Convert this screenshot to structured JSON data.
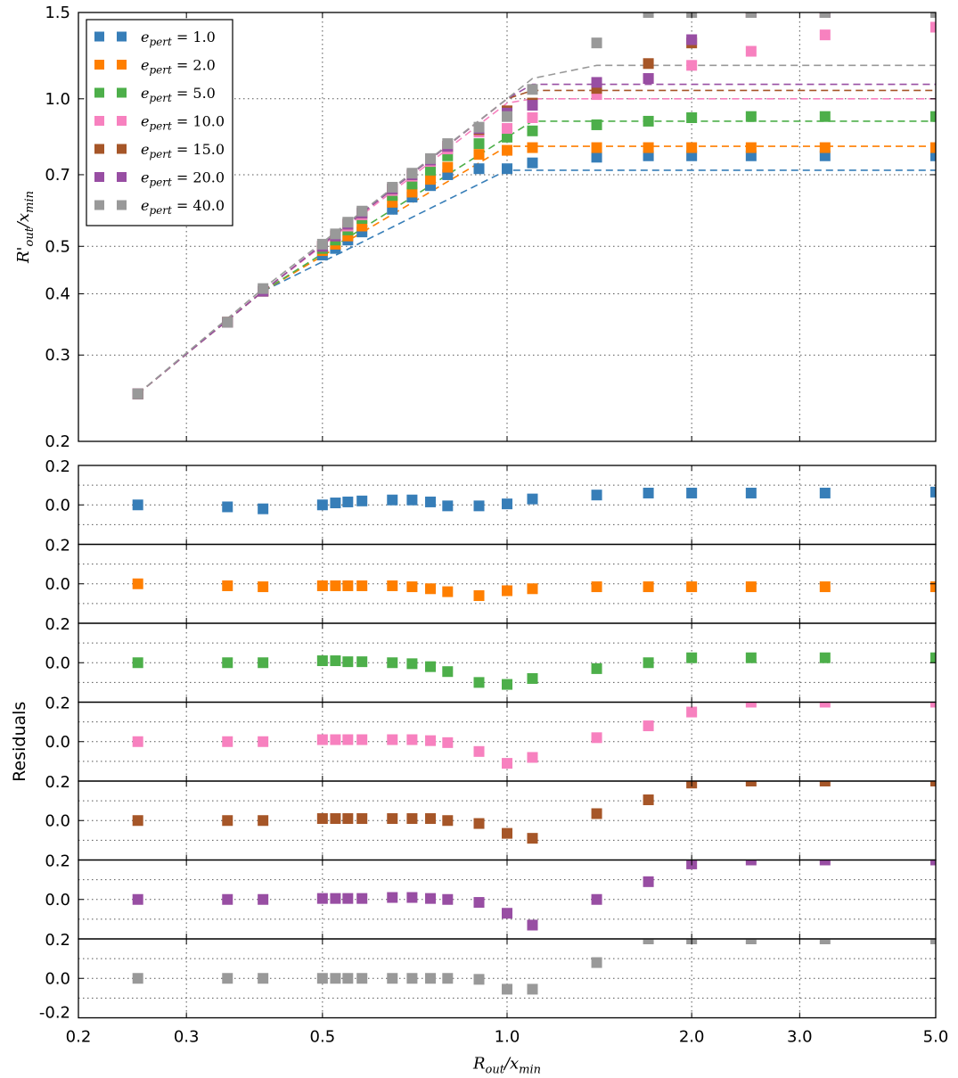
{
  "chart_data": {
    "type": "scatter",
    "x": [
      0.25,
      0.35,
      0.4,
      0.5,
      0.525,
      0.55,
      0.58,
      0.65,
      0.7,
      0.75,
      0.8,
      0.9,
      1.0,
      1.1,
      1.4,
      1.7,
      2.0,
      2.5,
      3.3,
      5.0
    ],
    "xlabel": "R_out/x_min",
    "x_tick_labels": [
      "0.2",
      "0.3",
      "0.5",
      "1.0",
      "2.0",
      "3.0",
      "5.0"
    ],
    "xlim": [
      0.2,
      5.0
    ],
    "xscale": "log",
    "main": {
      "ylabel": "R'_out/x_min",
      "ylim": [
        0.2,
        1.5
      ],
      "yscale": "log",
      "y_tick_labels": [
        "0.2",
        "0.3",
        "0.4",
        "0.5",
        "0.7",
        "1.0",
        "1.5"
      ],
      "grid": true
    },
    "residuals": {
      "ylabel": "Residuals",
      "ylim": [
        -0.2,
        0.2
      ],
      "y_tick_labels": [
        "0.2",
        "0.0",
        "-0.2"
      ]
    },
    "legend": {
      "position": "top-left"
    },
    "series": [
      {
        "name": "e_pert = 1.0",
        "color": "#377eb8",
        "y": [
          0.25,
          0.35,
          0.405,
          0.48,
          0.495,
          0.515,
          0.535,
          0.595,
          0.63,
          0.665,
          0.7,
          0.72,
          0.72,
          0.74,
          0.76,
          0.765,
          0.765,
          0.765,
          0.765,
          0.765
        ],
        "fit": [
          [
            0.25,
            0.25
          ],
          [
            0.4,
            0.405
          ],
          [
            1.0,
            0.715
          ],
          [
            5.0,
            0.715
          ]
        ],
        "residuals": [
          0.0,
          -0.01,
          -0.02,
          0.0,
          0.01,
          0.015,
          0.02,
          0.025,
          0.025,
          0.015,
          -0.005,
          -0.005,
          0.005,
          0.03,
          0.05,
          0.06,
          0.06,
          0.06,
          0.06,
          0.065
        ]
      },
      {
        "name": "e_pert = 2.0",
        "color": "#ff7f00",
        "y": [
          0.25,
          0.35,
          0.405,
          0.49,
          0.505,
          0.525,
          0.55,
          0.615,
          0.645,
          0.685,
          0.725,
          0.77,
          0.785,
          0.795,
          0.795,
          0.795,
          0.795,
          0.795,
          0.795,
          0.795
        ],
        "fit": [
          [
            0.25,
            0.25
          ],
          [
            0.4,
            0.405
          ],
          [
            1.0,
            0.8
          ],
          [
            5.0,
            0.8
          ]
        ],
        "residuals": [
          0.0,
          -0.01,
          -0.015,
          -0.01,
          -0.01,
          -0.01,
          -0.01,
          -0.01,
          -0.015,
          -0.025,
          -0.04,
          -0.06,
          -0.035,
          -0.025,
          -0.015,
          -0.015,
          -0.015,
          -0.015,
          -0.015,
          -0.015
        ]
      },
      {
        "name": "e_pert = 5.0",
        "color": "#4daf4a",
        "y": [
          0.25,
          0.35,
          0.405,
          0.495,
          0.515,
          0.54,
          0.57,
          0.635,
          0.67,
          0.715,
          0.765,
          0.81,
          0.835,
          0.86,
          0.885,
          0.9,
          0.915,
          0.92,
          0.92,
          0.92
        ],
        "fit": [
          [
            0.25,
            0.25
          ],
          [
            0.4,
            0.405
          ],
          [
            1.1,
            0.9
          ],
          [
            5.0,
            0.9
          ]
        ],
        "residuals": [
          0.0,
          0.0,
          0.0,
          0.01,
          0.01,
          0.005,
          0.005,
          0.0,
          -0.005,
          -0.02,
          -0.045,
          -0.1,
          -0.11,
          -0.08,
          -0.03,
          0.0,
          0.025,
          0.025,
          0.025,
          0.025
        ]
      },
      {
        "name": "e_pert = 10.0",
        "color": "#f781bf",
        "y": [
          0.25,
          0.35,
          0.405,
          0.5,
          0.525,
          0.55,
          0.58,
          0.65,
          0.695,
          0.745,
          0.79,
          0.855,
          0.87,
          0.915,
          1.02,
          1.1,
          1.17,
          1.25,
          1.35,
          1.4
        ],
        "fit": [
          [
            0.25,
            0.25
          ],
          [
            0.4,
            0.405
          ],
          [
            1.0,
            0.98
          ],
          [
            1.1,
            1.0
          ],
          [
            5.0,
            1.0
          ]
        ],
        "residuals": [
          0.0,
          0.0,
          0.0,
          0.01,
          0.01,
          0.01,
          0.01,
          0.01,
          0.01,
          0.005,
          -0.005,
          -0.05,
          -0.11,
          -0.08,
          0.02,
          0.08,
          0.15,
          0.2,
          0.2,
          0.2
        ]
      },
      {
        "name": "e_pert = 15.0",
        "color": "#a65628",
        "y": [
          0.25,
          0.35,
          0.405,
          0.5,
          0.525,
          0.555,
          0.585,
          0.655,
          0.7,
          0.75,
          0.8,
          0.865,
          0.945,
          0.98,
          1.05,
          1.18,
          1.3,
          1.5,
          1.5,
          1.5
        ],
        "fit": [
          [
            0.25,
            0.25
          ],
          [
            0.4,
            0.405
          ],
          [
            1.0,
            1.0
          ],
          [
            1.1,
            1.04
          ],
          [
            5.0,
            1.04
          ]
        ],
        "residuals": [
          0.0,
          0.0,
          0.0,
          0.01,
          0.01,
          0.01,
          0.01,
          0.01,
          0.01,
          0.01,
          0.0,
          -0.015,
          -0.065,
          -0.09,
          0.035,
          0.105,
          0.19,
          0.2,
          0.2,
          0.2
        ]
      },
      {
        "name": "e_pert = 20.0",
        "color": "#984ea3",
        "y": [
          0.25,
          0.35,
          0.405,
          0.5,
          0.525,
          0.555,
          0.585,
          0.655,
          0.7,
          0.75,
          0.8,
          0.87,
          0.935,
          0.97,
          1.08,
          1.1,
          1.32,
          1.5,
          1.5,
          1.5
        ],
        "fit": [
          [
            0.25,
            0.25
          ],
          [
            0.4,
            0.405
          ],
          [
            1.0,
            1.0
          ],
          [
            1.1,
            1.07
          ],
          [
            5.0,
            1.07
          ]
        ],
        "residuals": [
          0.0,
          0.0,
          0.0,
          0.005,
          0.005,
          0.005,
          0.005,
          0.01,
          0.01,
          0.005,
          0.0,
          -0.015,
          -0.07,
          -0.13,
          0.0,
          0.09,
          0.18,
          0.2,
          0.2,
          0.2
        ]
      },
      {
        "name": "e_pert = 40.0",
        "color": "#999999",
        "y": [
          0.25,
          0.35,
          0.41,
          0.505,
          0.53,
          0.56,
          0.59,
          0.66,
          0.705,
          0.755,
          0.81,
          0.875,
          0.92,
          1.045,
          1.3,
          1.5,
          1.5,
          1.5,
          1.5,
          1.5
        ],
        "fit": [
          [
            0.25,
            0.25
          ],
          [
            0.4,
            0.41
          ],
          [
            1.0,
            1.0
          ],
          [
            1.1,
            1.1
          ],
          [
            1.4,
            1.17
          ],
          [
            5.0,
            1.17
          ]
        ],
        "residuals": [
          0.0,
          0.0,
          0.0,
          0.0,
          0.0,
          0.0,
          0.0,
          0.0,
          0.0,
          0.0,
          0.0,
          -0.005,
          -0.055,
          -0.055,
          0.08,
          0.2,
          0.2,
          0.2,
          0.2,
          0.2
        ]
      }
    ]
  }
}
